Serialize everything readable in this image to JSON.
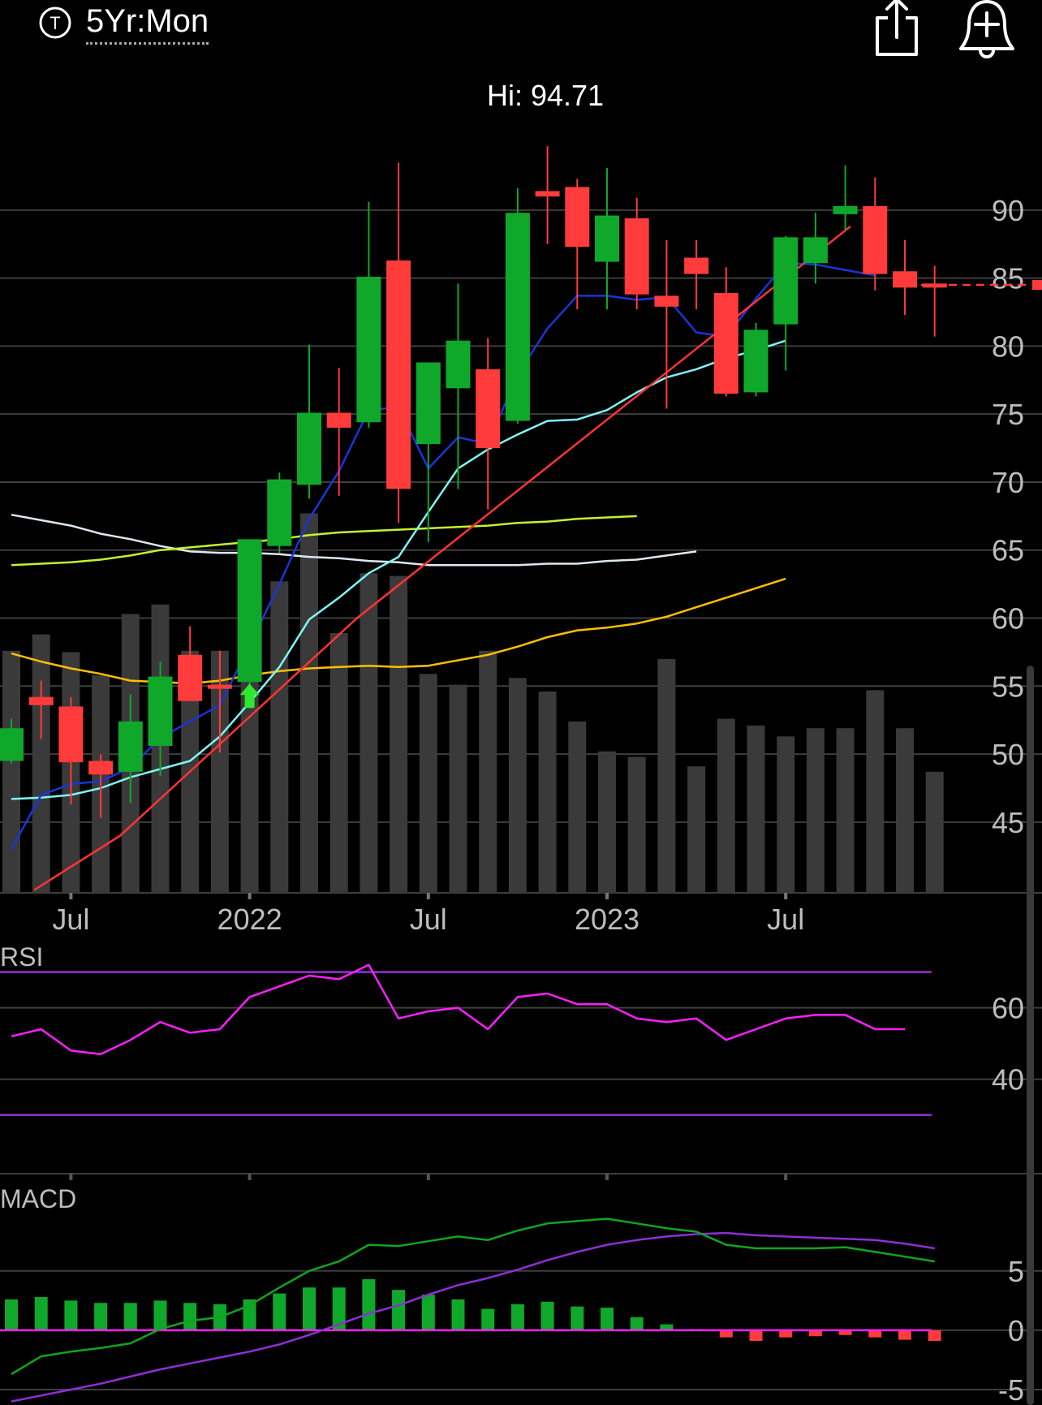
{
  "header": {
    "ticker_icon": "ticker-circle-icon",
    "ticker_letter": "T",
    "range_label": "5Yr:Mon",
    "share_icon": "share-icon",
    "alert_icon": "add-alert-bell-icon"
  },
  "colors": {
    "up": "#0fa82a",
    "down": "#ff3b3b",
    "volume": "#3a3a3a",
    "grid": "#3e3e3e",
    "ma_blue": "#1a35d6",
    "ma_cyan": "#7ff4f4",
    "ma_red": "#ff3333",
    "ma_lime": "#c4f22c",
    "ma_white": "#dde8ee",
    "ma_yellow": "#ffbf00",
    "rsi_line": "#ff1fff",
    "rsi_band": "#9b2dd6",
    "macd_line": "#11a51e",
    "macd_signal": "#8e2fd6"
  },
  "chart_data": [
    {
      "type": "candlestick",
      "hi_label": "Hi: 94.71",
      "x_tick_labels": [
        {
          "label": "Jul",
          "index": 2
        },
        {
          "label": "2022",
          "index": 8
        },
        {
          "label": "Jul",
          "index": 14
        },
        {
          "label": "2023",
          "index": 20
        },
        {
          "label": "Jul",
          "index": 26
        }
      ],
      "y_ticks": [
        90,
        85,
        80,
        75,
        70,
        65,
        60,
        55,
        50,
        45
      ],
      "ylim": [
        39.8,
        95.6
      ],
      "last_price": 84.5,
      "candles": [
        {
          "o": 49.5,
          "h": 52.6,
          "l": 49.3,
          "c": 51.9
        },
        {
          "o": 54.2,
          "h": 55.4,
          "l": 51.1,
          "c": 53.6
        },
        {
          "o": 53.5,
          "h": 54.2,
          "l": 46.3,
          "c": 49.4
        },
        {
          "o": 49.5,
          "h": 50.0,
          "l": 45.3,
          "c": 48.5
        },
        {
          "o": 48.7,
          "h": 54.4,
          "l": 46.4,
          "c": 52.4
        },
        {
          "o": 50.6,
          "h": 56.8,
          "l": 48.4,
          "c": 55.7
        },
        {
          "o": 57.3,
          "h": 59.4,
          "l": 54.4,
          "c": 53.9
        },
        {
          "o": 55.1,
          "h": 57.6,
          "l": 50.1,
          "c": 54.8
        },
        {
          "o": 55.3,
          "h": 65.6,
          "l": 54.2,
          "c": 65.8
        },
        {
          "o": 65.3,
          "h": 70.7,
          "l": 64.8,
          "c": 70.2
        },
        {
          "o": 69.8,
          "h": 80.1,
          "l": 68.8,
          "c": 75.1
        },
        {
          "o": 75.1,
          "h": 78.4,
          "l": 69.0,
          "c": 74.0
        },
        {
          "o": 74.4,
          "h": 90.6,
          "l": 74.0,
          "c": 85.1
        },
        {
          "o": 86.3,
          "h": 93.5,
          "l": 67.0,
          "c": 69.5
        },
        {
          "o": 72.8,
          "h": 78.3,
          "l": 65.6,
          "c": 78.8
        },
        {
          "o": 76.9,
          "h": 84.6,
          "l": 69.5,
          "c": 80.4
        },
        {
          "o": 78.3,
          "h": 80.6,
          "l": 68.0,
          "c": 72.5
        },
        {
          "o": 74.5,
          "h": 91.6,
          "l": 74.3,
          "c": 89.8
        },
        {
          "o": 91.4,
          "h": 94.7,
          "l": 87.5,
          "c": 91.0
        },
        {
          "o": 91.7,
          "h": 92.3,
          "l": 82.7,
          "c": 87.3
        },
        {
          "o": 86.2,
          "h": 93.1,
          "l": 82.7,
          "c": 89.6
        },
        {
          "o": 89.4,
          "h": 90.9,
          "l": 82.7,
          "c": 83.8
        },
        {
          "o": 83.7,
          "h": 87.8,
          "l": 75.4,
          "c": 82.9
        },
        {
          "o": 86.5,
          "h": 87.8,
          "l": 82.7,
          "c": 85.3
        },
        {
          "o": 83.9,
          "h": 85.8,
          "l": 76.3,
          "c": 76.5
        },
        {
          "o": 76.6,
          "h": 81.7,
          "l": 76.3,
          "c": 81.2
        },
        {
          "o": 81.6,
          "h": 88.1,
          "l": 78.2,
          "c": 88.0
        },
        {
          "o": 86.1,
          "h": 89.8,
          "l": 84.6,
          "c": 88.0
        },
        {
          "o": 89.7,
          "h": 93.3,
          "l": 88.5,
          "c": 90.3
        },
        {
          "o": 90.3,
          "h": 92.4,
          "l": 84.1,
          "c": 85.3
        },
        {
          "o": 85.5,
          "h": 87.8,
          "l": 82.3,
          "c": 84.3
        },
        {
          "o": 84.6,
          "h": 85.9,
          "l": 80.7,
          "c": 84.4
        }
      ],
      "volume": [
        57.6,
        58.8,
        57.5,
        55.8,
        60.3,
        61.0,
        57.6,
        57.6,
        56.4,
        62.7,
        67.7,
        58.9,
        63.3,
        63.1,
        55.9,
        55.1,
        57.6,
        55.6,
        54.6,
        52.4,
        50.2,
        49.8,
        57.0,
        49.1,
        52.6,
        52.1,
        51.3,
        51.9,
        51.9,
        54.7,
        51.9,
        48.7
      ],
      "ma_blue": [
        43.0,
        47.0,
        47.8,
        48.0,
        49.0,
        51.2,
        52.4,
        53.6,
        58.0,
        62.5,
        67.3,
        70.8,
        75.3,
        75.5,
        71.0,
        73.3,
        72.8,
        77.9,
        81.3,
        83.7,
        83.7,
        83.4,
        83.6,
        81.0,
        80.7,
        83.5,
        86.1,
        86.0,
        85.6,
        85.2
      ],
      "ma_cyan": [
        46.7,
        46.8,
        47.0,
        47.5,
        48.3,
        48.9,
        49.5,
        51.3,
        53.8,
        56.4,
        59.9,
        61.5,
        63.3,
        64.5,
        67.8,
        71.0,
        72.4,
        73.5,
        74.5,
        74.6,
        75.3,
        76.6,
        77.7,
        78.3,
        79.1,
        79.7,
        80.4
      ],
      "ma_red": [
        40.0,
        44.0,
        60.0,
        88.8
      ],
      "ma_lime": [
        63.9,
        64.0,
        64.1,
        64.3,
        64.6,
        65.0,
        65.2,
        65.4,
        65.6,
        65.8,
        66.1,
        66.3,
        66.4,
        66.5,
        66.6,
        66.7,
        66.8,
        67.0,
        67.1,
        67.3,
        67.4,
        67.5
      ],
      "ma_white": [
        67.6,
        67.2,
        66.8,
        66.2,
        65.8,
        65.3,
        64.9,
        64.8,
        64.8,
        64.7,
        64.5,
        64.4,
        64.2,
        64.1,
        63.9,
        63.9,
        63.9,
        63.9,
        64.0,
        64.0,
        64.2,
        64.3,
        64.6,
        64.9
      ],
      "ma_yellow": [
        57.4,
        56.8,
        56.3,
        55.9,
        55.4,
        55.3,
        55.2,
        55.4,
        55.8,
        56.1,
        56.3,
        56.4,
        56.5,
        56.4,
        56.5,
        56.9,
        57.3,
        57.9,
        58.6,
        59.1,
        59.3,
        59.6,
        60.1,
        60.8,
        61.5,
        62.2,
        62.9
      ]
    },
    {
      "type": "line",
      "title": "RSI",
      "y_ticks": [
        60,
        40
      ],
      "ylim": [
        24,
        74
      ],
      "bands": [
        70,
        30
      ],
      "values": [
        52,
        54,
        48,
        47,
        51,
        56,
        53,
        54,
        63,
        66,
        69,
        68,
        72,
        57,
        59,
        60,
        54,
        63,
        64,
        61,
        61,
        57,
        56,
        57,
        51,
        54,
        57,
        58,
        58,
        54,
        54
      ]
    },
    {
      "type": "bar+line",
      "title": "MACD",
      "y_ticks": [
        5,
        0,
        -5
      ],
      "ylim": [
        -6.3,
        9.5
      ],
      "histogram": [
        2.6,
        2.8,
        2.5,
        2.3,
        2.3,
        2.5,
        2.3,
        2.2,
        2.6,
        3.1,
        3.6,
        3.6,
        4.3,
        3.4,
        3.0,
        2.6,
        1.8,
        2.2,
        2.4,
        2.0,
        1.9,
        1.1,
        0.5,
        0.1,
        -0.6,
        -0.9,
        -0.6,
        -0.5,
        -0.4,
        -0.6,
        -0.8,
        -0.9
      ],
      "macd": [
        -3.7,
        -2.2,
        -1.8,
        -1.5,
        -1.1,
        0.1,
        0.8,
        1.1,
        2.1,
        3.6,
        5.0,
        5.8,
        7.2,
        7.1,
        7.5,
        7.9,
        7.6,
        8.4,
        9.0,
        9.2,
        9.4,
        9.0,
        8.6,
        8.3,
        7.2,
        6.9,
        6.9,
        6.9,
        7.0,
        6.6,
        6.2,
        5.8
      ],
      "signal": [
        -6.0,
        -5.5,
        -5.0,
        -4.5,
        -3.9,
        -3.3,
        -2.8,
        -2.3,
        -1.8,
        -1.2,
        -0.4,
        0.5,
        1.4,
        2.1,
        3.0,
        3.8,
        4.4,
        5.1,
        5.9,
        6.6,
        7.2,
        7.6,
        7.9,
        8.1,
        8.2,
        8.0,
        7.9,
        7.8,
        7.7,
        7.6,
        7.3,
        6.9
      ]
    }
  ]
}
